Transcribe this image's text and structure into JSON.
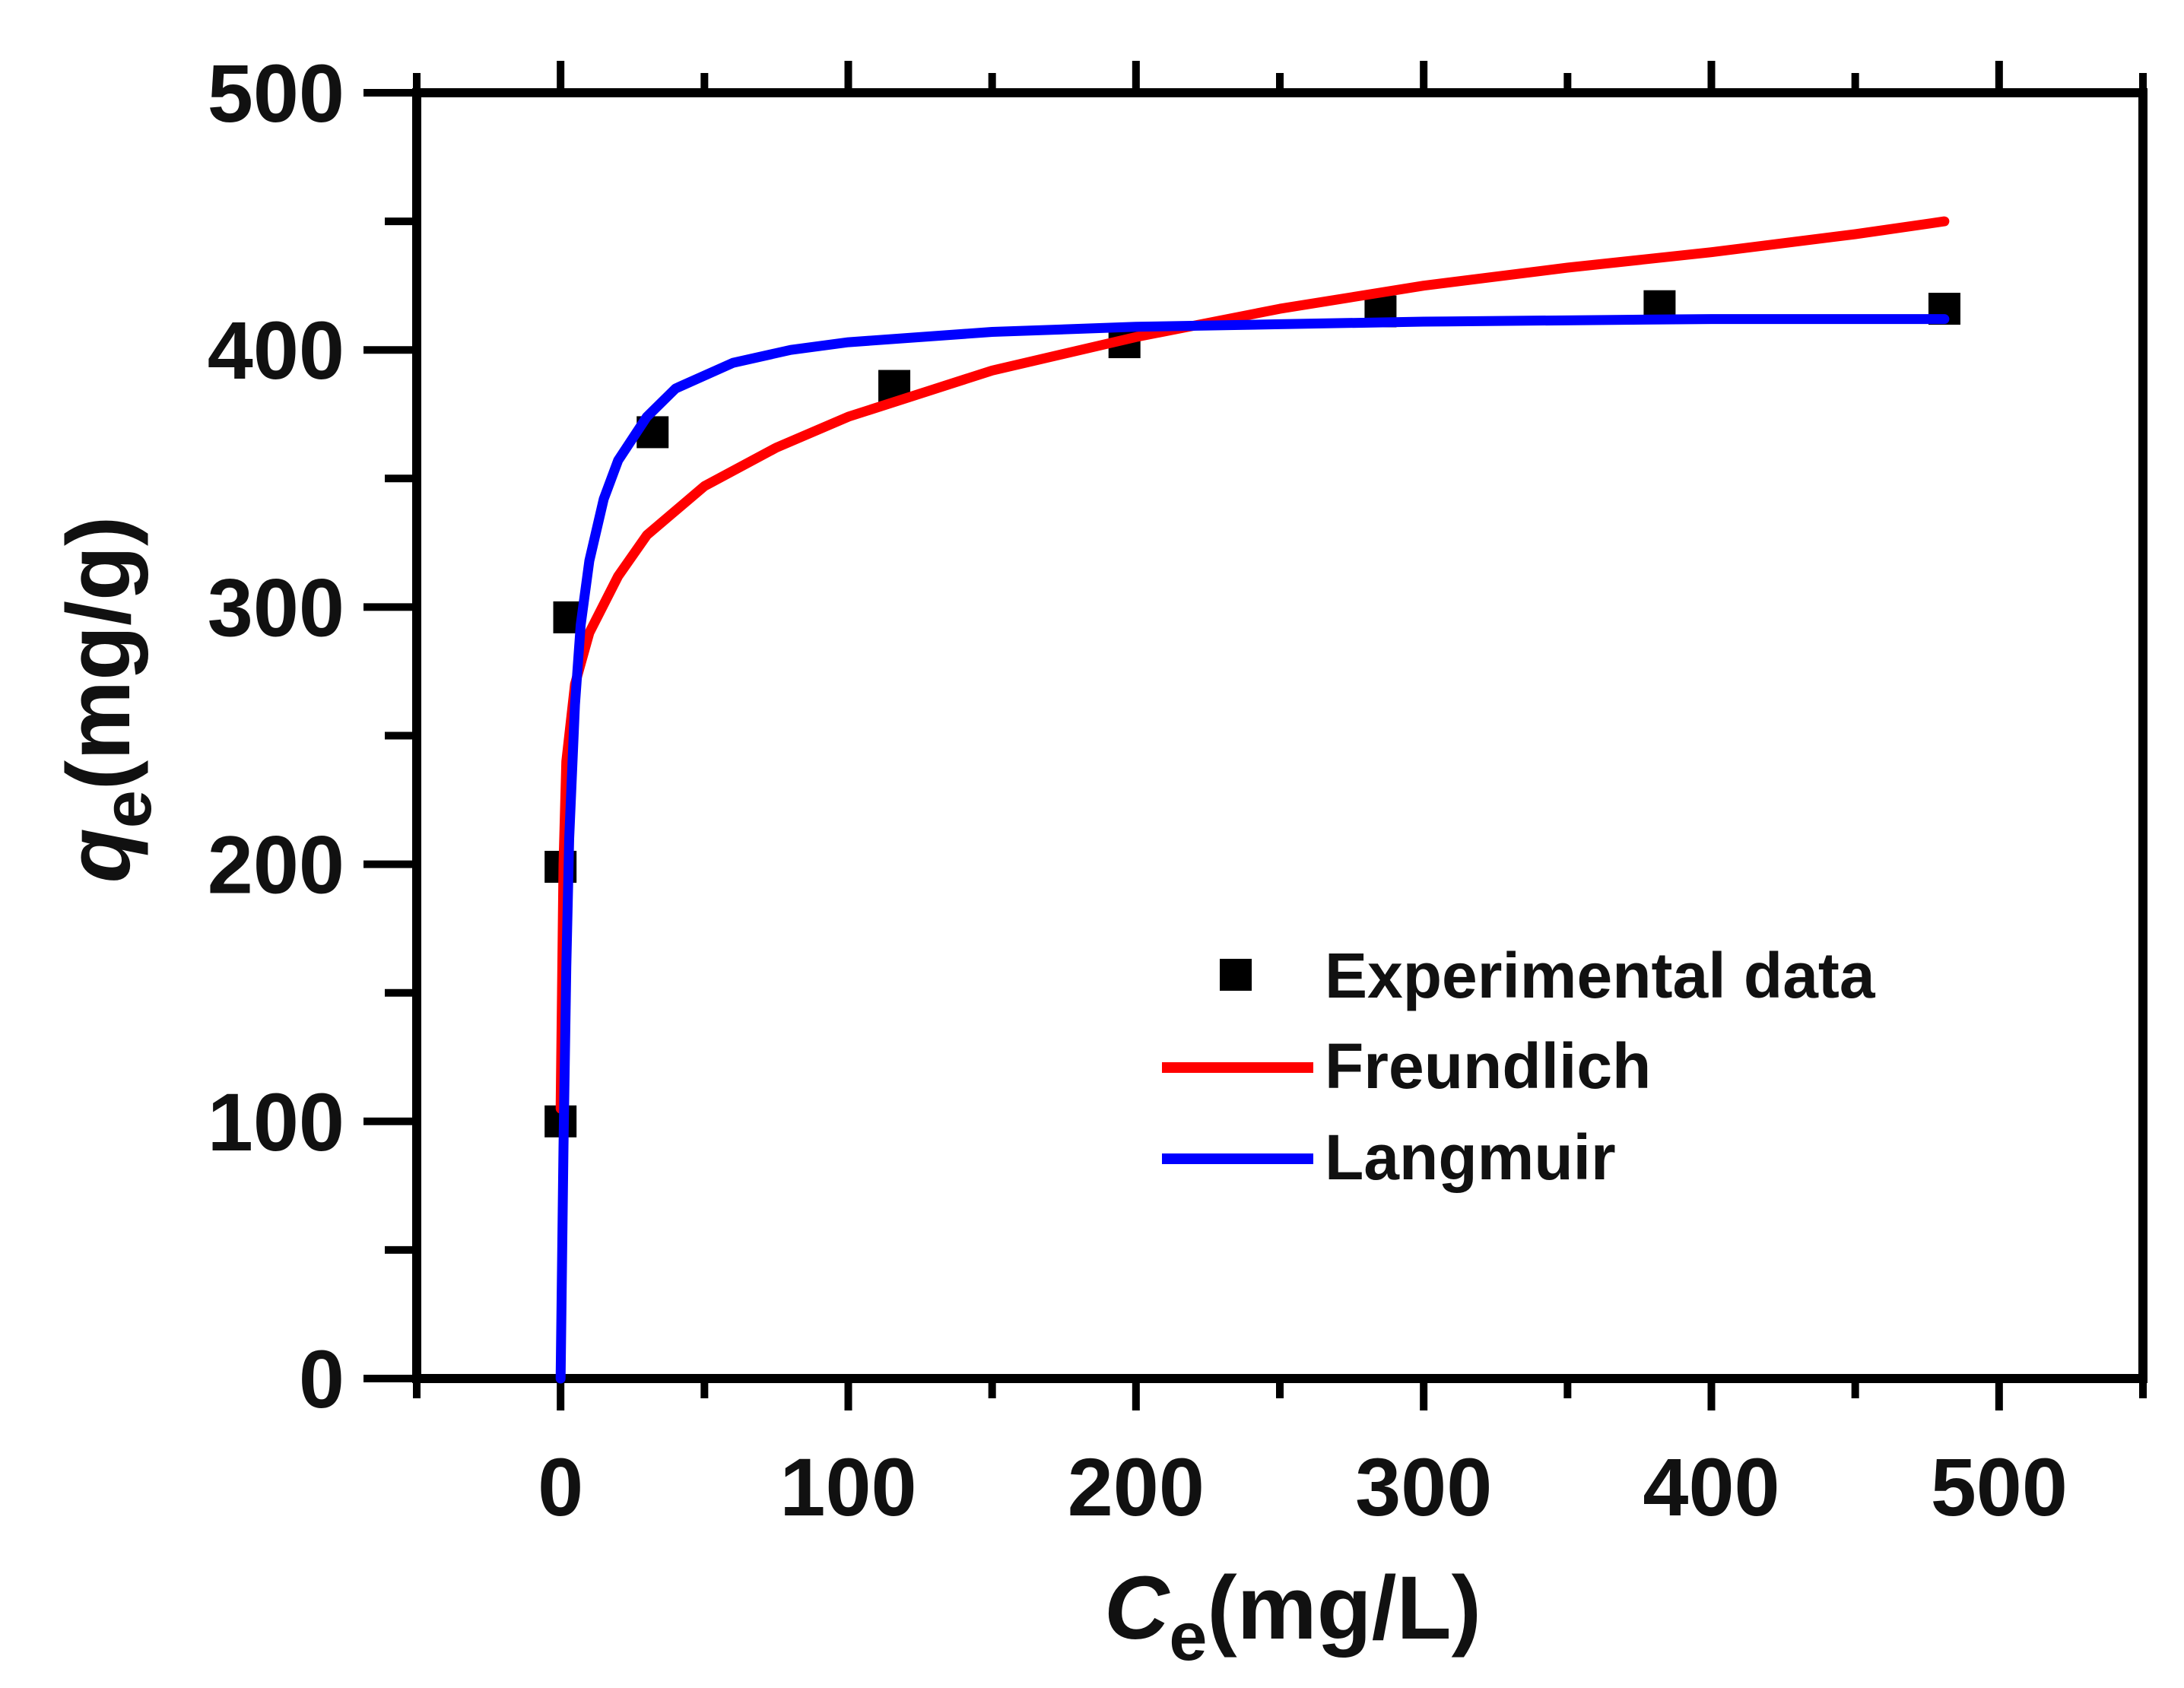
{
  "chart_data": {
    "type": "scatter",
    "xlabel": {
      "symbol": "C",
      "subscript": "e",
      "unit": "(mg/L)"
    },
    "ylabel": {
      "symbol": "q",
      "subscript": "e",
      "unit": "(mg/g)"
    },
    "xlim": [
      -50,
      550
    ],
    "ylim": [
      0,
      500
    ],
    "x_ticks": [
      0,
      100,
      200,
      300,
      400,
      500
    ],
    "x_ticks_minor": [
      -50,
      50,
      150,
      250,
      350,
      450,
      550
    ],
    "y_ticks": [
      0,
      100,
      200,
      300,
      400,
      500
    ],
    "y_ticks_minor": [
      50,
      150,
      250,
      350,
      450
    ],
    "grid": false,
    "legend_position": "lower-right",
    "series": [
      {
        "name": "Experimental data",
        "kind": "markers",
        "marker": "square",
        "color": "#000000",
        "x": [
          0,
          0,
          3,
          32,
          116,
          196,
          285,
          382,
          481
        ],
        "y": [
          100,
          199,
          296,
          368,
          386,
          403,
          415,
          417,
          416
        ]
      },
      {
        "name": "Freundlich",
        "kind": "line",
        "color": "#ff0000",
        "x": [
          0,
          1,
          2,
          5,
          10,
          20,
          30,
          50,
          75,
          100,
          150,
          200,
          250,
          300,
          350,
          400,
          450,
          481
        ],
        "y": [
          105,
          200,
          240,
          270,
          290,
          312,
          328,
          347,
          362,
          374,
          392,
          405,
          416,
          425,
          432,
          438,
          445,
          450
        ]
      },
      {
        "name": "Langmuir",
        "kind": "line",
        "color": "#0000ff",
        "x": [
          0,
          1,
          2,
          3,
          5,
          7,
          10,
          15,
          20,
          30,
          40,
          60,
          80,
          100,
          150,
          200,
          250,
          300,
          400,
          481
        ],
        "y": [
          0,
          90,
          160,
          210,
          262,
          293,
          318,
          342,
          357,
          374,
          385,
          395,
          400,
          403,
          407,
          409,
          410,
          411,
          412,
          412
        ]
      }
    ]
  }
}
